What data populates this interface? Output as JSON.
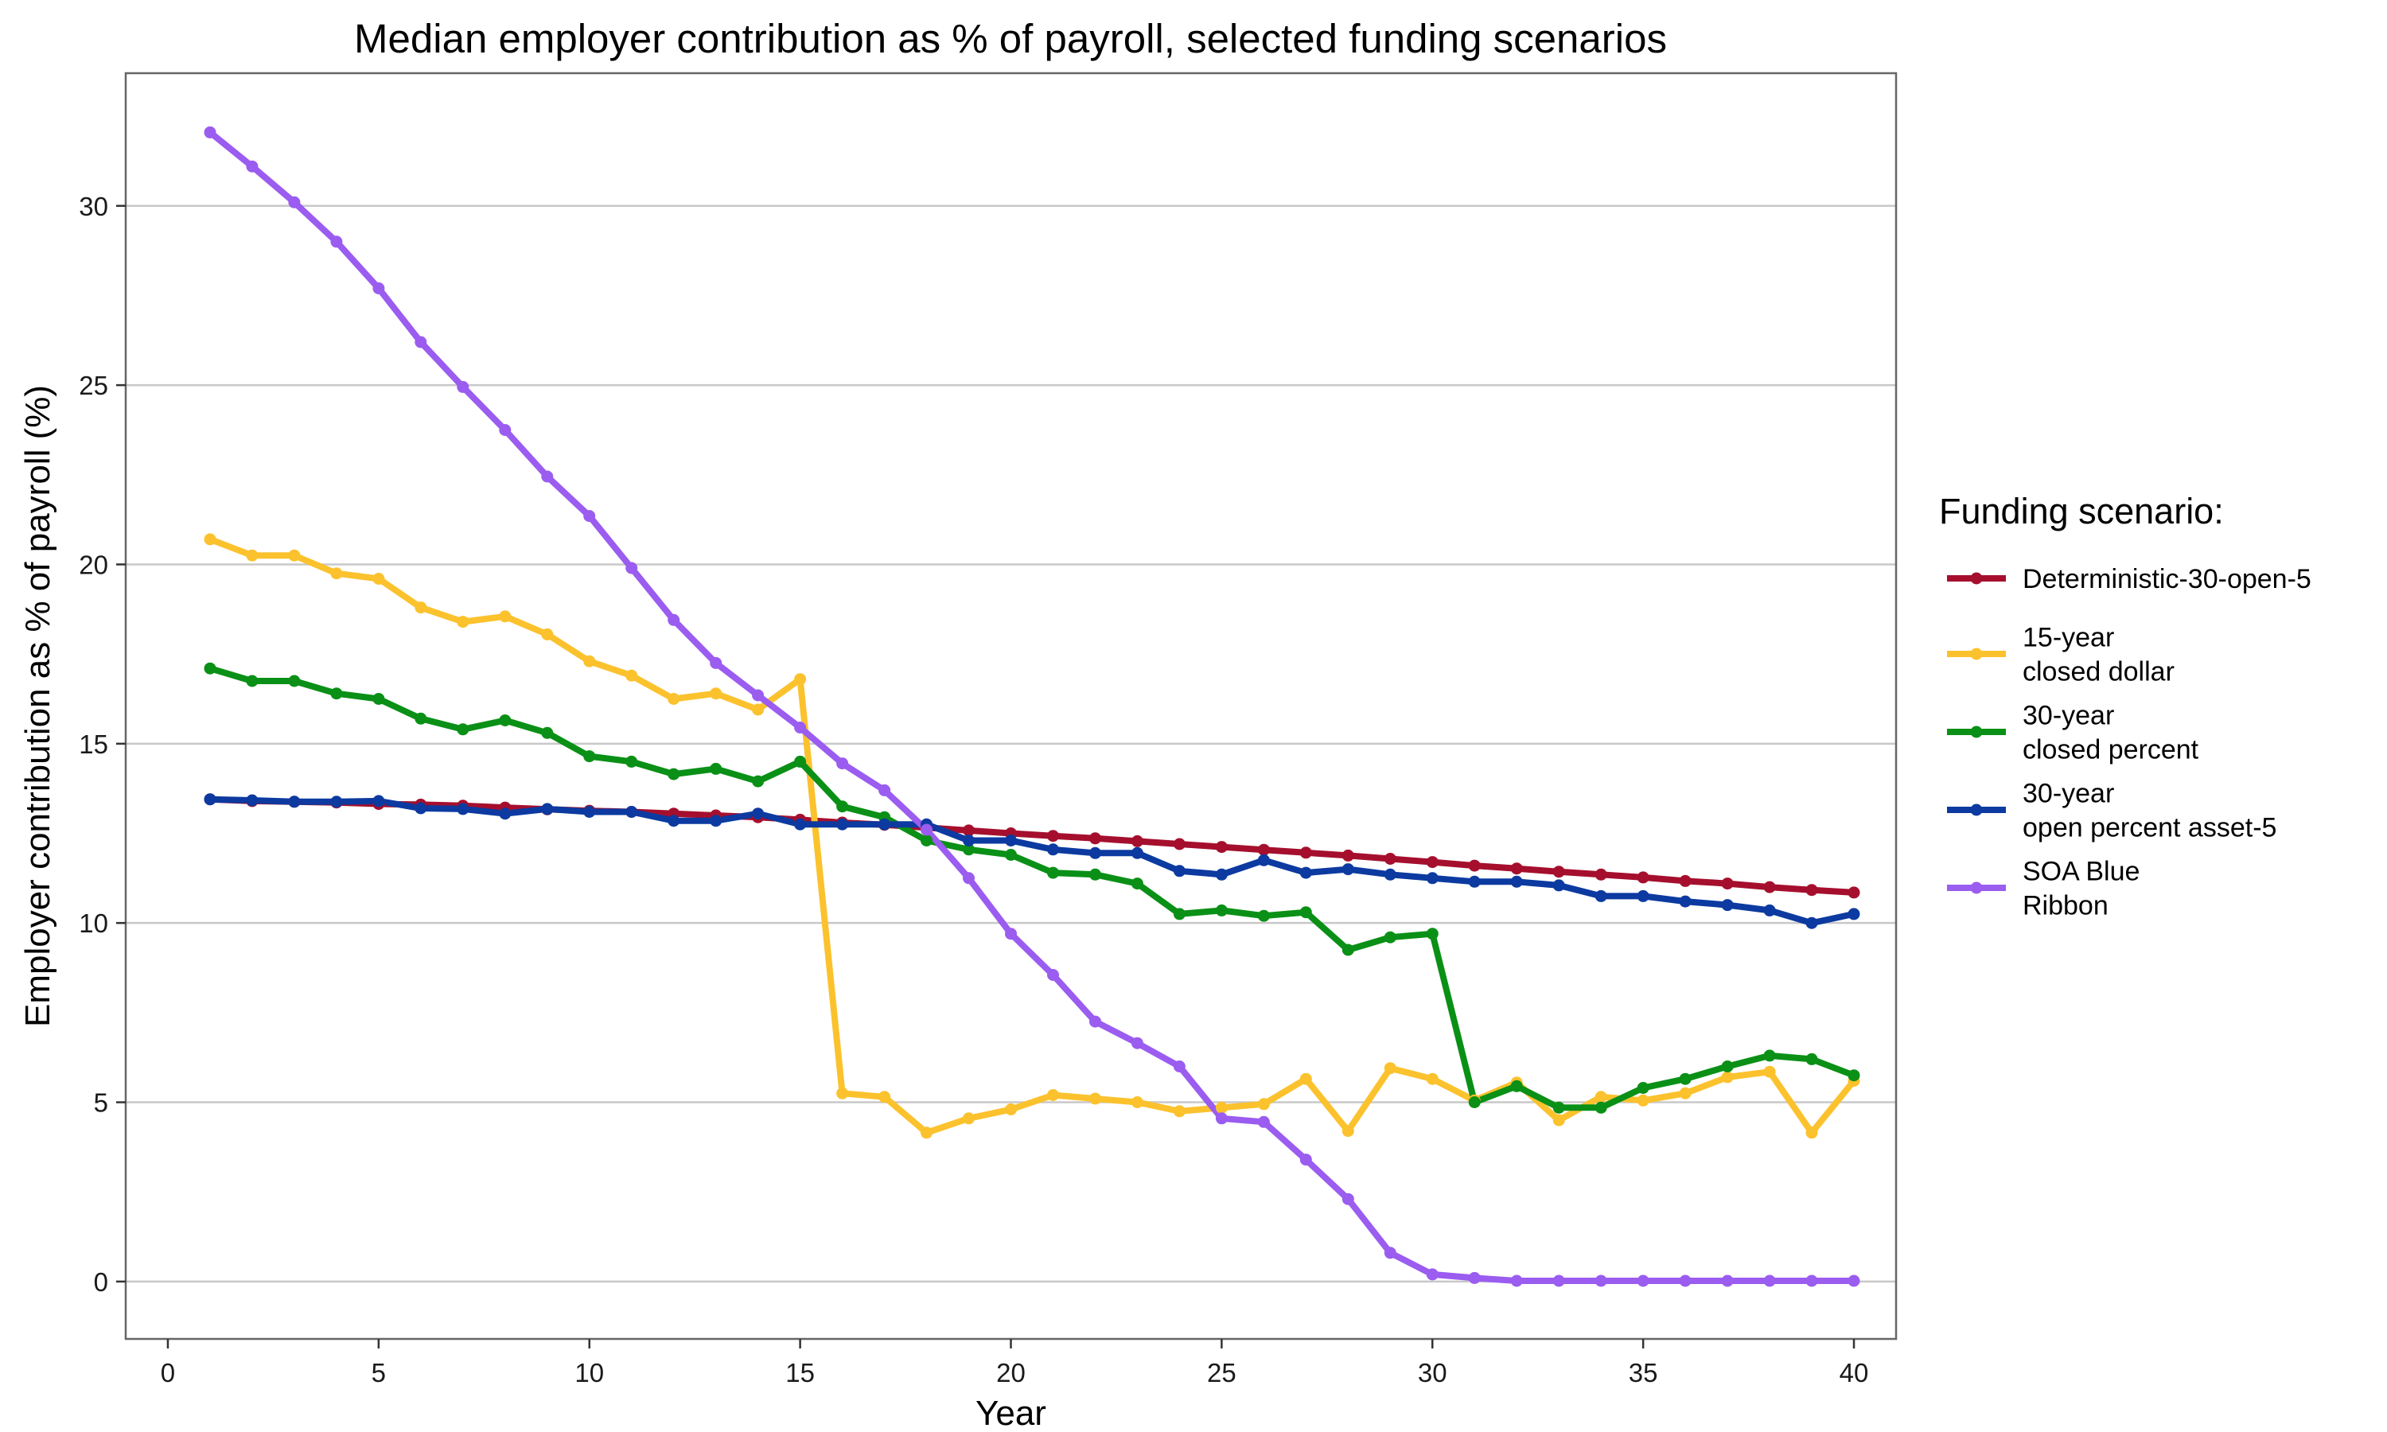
{
  "chart_data": {
    "type": "line",
    "title": "Median employer contribution as % of payroll, selected funding scenarios",
    "xlabel": "Year",
    "ylabel": "Employer contribution as % of payroll (%)",
    "xlim": [
      -1,
      41
    ],
    "ylim": [
      -1.6,
      33.7
    ],
    "xticks": [
      0,
      5,
      10,
      15,
      20,
      25,
      30,
      35,
      40
    ],
    "yticks": [
      0,
      5,
      10,
      15,
      20,
      25,
      30
    ],
    "grid": "horizontal",
    "legend": {
      "title": "Funding scenario:",
      "placement": "right"
    },
    "x": [
      1,
      2,
      3,
      4,
      5,
      6,
      7,
      8,
      9,
      10,
      11,
      12,
      13,
      14,
      15,
      16,
      17,
      18,
      19,
      20,
      21,
      22,
      23,
      24,
      25,
      26,
      27,
      28,
      29,
      30,
      31,
      32,
      33,
      34,
      35,
      36,
      37,
      38,
      39,
      40
    ],
    "series": [
      {
        "name": "Deterministic-30-open-5",
        "legend_lines": [
          "Deterministic-30-open-5"
        ],
        "color": "#a50f2d",
        "values": [
          13.45,
          13.4,
          13.38,
          13.36,
          13.32,
          13.3,
          13.27,
          13.22,
          13.17,
          13.13,
          13.1,
          13.05,
          13.0,
          12.95,
          12.88,
          12.8,
          12.74,
          12.66,
          12.58,
          12.5,
          12.43,
          12.36,
          12.28,
          12.2,
          12.12,
          12.04,
          11.96,
          11.88,
          11.79,
          11.7,
          11.6,
          11.52,
          11.43,
          11.35,
          11.27,
          11.17,
          11.1,
          11.0,
          10.92,
          10.85
        ]
      },
      {
        "name": "15-year closed dollar",
        "legend_lines": [
          "15-year",
          "closed dollar"
        ],
        "color": "#fbc22d",
        "values": [
          20.7,
          20.25,
          20.25,
          19.75,
          19.6,
          18.8,
          18.4,
          18.55,
          18.05,
          17.3,
          16.9,
          16.25,
          16.4,
          15.95,
          16.8,
          5.25,
          5.15,
          4.15,
          4.55,
          4.8,
          5.2,
          5.1,
          5.0,
          4.75,
          4.85,
          4.95,
          5.65,
          4.2,
          5.95,
          5.65,
          5.05,
          5.55,
          4.5,
          5.15,
          5.05,
          5.25,
          5.7,
          5.85,
          4.15,
          5.6
        ]
      },
      {
        "name": "30-year closed percent",
        "legend_lines": [
          "30-year",
          "closed percent"
        ],
        "color": "#0a9016",
        "values": [
          17.1,
          16.75,
          16.75,
          16.4,
          16.25,
          15.7,
          15.4,
          15.65,
          15.3,
          14.65,
          14.5,
          14.15,
          14.3,
          13.95,
          14.5,
          13.25,
          12.95,
          12.3,
          12.05,
          11.9,
          11.4,
          11.35,
          11.1,
          10.25,
          10.35,
          10.2,
          10.3,
          9.25,
          9.6,
          9.7,
          5.0,
          5.45,
          4.85,
          4.85,
          5.4,
          5.65,
          6.0,
          6.3,
          6.2,
          5.75
        ]
      },
      {
        "name": "30-year open percent asset-5",
        "legend_lines": [
          "30-year",
          "open percent asset-5"
        ],
        "color": "#0c3aa0",
        "values": [
          13.45,
          13.42,
          13.38,
          13.38,
          13.4,
          13.2,
          13.18,
          13.05,
          13.18,
          13.1,
          13.1,
          12.85,
          12.85,
          13.05,
          12.75,
          12.75,
          12.75,
          12.75,
          12.3,
          12.3,
          12.05,
          11.95,
          11.95,
          11.45,
          11.35,
          11.75,
          11.4,
          11.5,
          11.35,
          11.25,
          11.15,
          11.15,
          11.05,
          10.75,
          10.75,
          10.6,
          10.5,
          10.35,
          10.0,
          10.25
        ]
      },
      {
        "name": "SOA Blue Ribbon",
        "legend_lines": [
          "SOA Blue",
          "Ribbon"
        ],
        "color": "#9b5cf0",
        "values": [
          32.05,
          31.1,
          30.1,
          29.0,
          27.7,
          26.2,
          24.95,
          23.75,
          22.45,
          21.35,
          19.9,
          18.45,
          17.25,
          16.35,
          15.45,
          14.45,
          13.7,
          12.6,
          11.25,
          9.7,
          8.55,
          7.25,
          6.65,
          6.0,
          4.55,
          4.45,
          3.4,
          2.3,
          0.8,
          0.2,
          0.1,
          0.02,
          0.02,
          0.02,
          0.02,
          0.02,
          0.02,
          0.02,
          0.02,
          0.02
        ]
      }
    ]
  }
}
